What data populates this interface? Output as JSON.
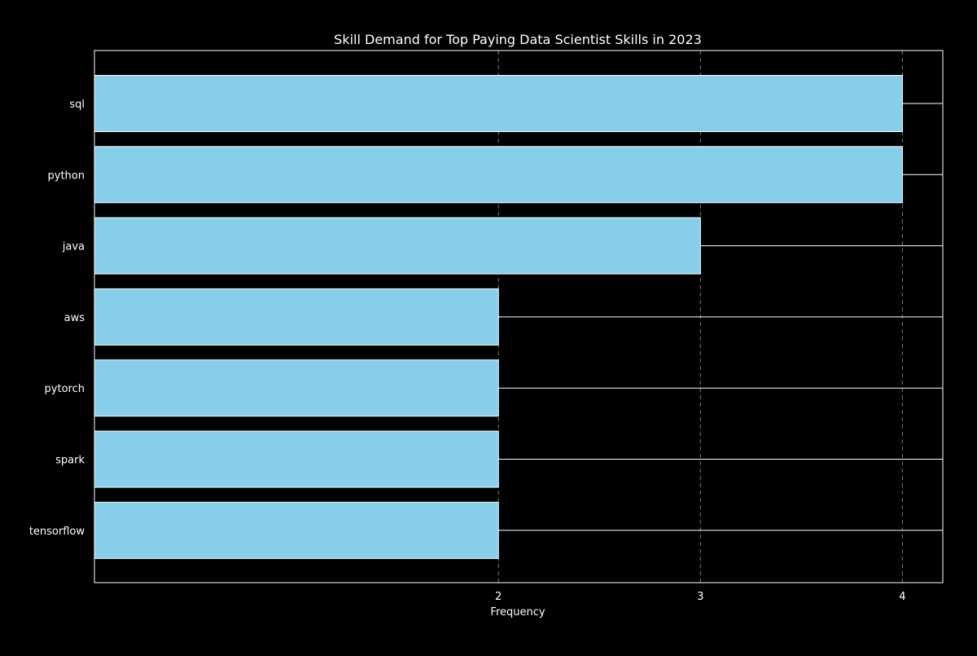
{
  "colors": {
    "background": "#000000",
    "bar_fill": "#87CEEB",
    "bar_edge": "#FFFFFF",
    "text": "#FFFFFF",
    "grid": "#777777",
    "axis": "#FFFFFF"
  },
  "chart_data": {
    "type": "bar",
    "orientation": "horizontal",
    "title": "Skill Demand for Top Paying Data Scientist Skills in 2023",
    "xlabel": "Frequency",
    "ylabel": "",
    "categories": [
      "sql",
      "python",
      "java",
      "aws",
      "pytorch",
      "spark",
      "tensorflow"
    ],
    "values": [
      4,
      4,
      3,
      2,
      2,
      2,
      2
    ],
    "xlim": [
      0,
      4.2
    ],
    "xticks": [
      2,
      3,
      4
    ],
    "xtick_labels": [
      "2",
      "3",
      "4"
    ],
    "grid": "x-axis dashed",
    "legend": "none"
  }
}
